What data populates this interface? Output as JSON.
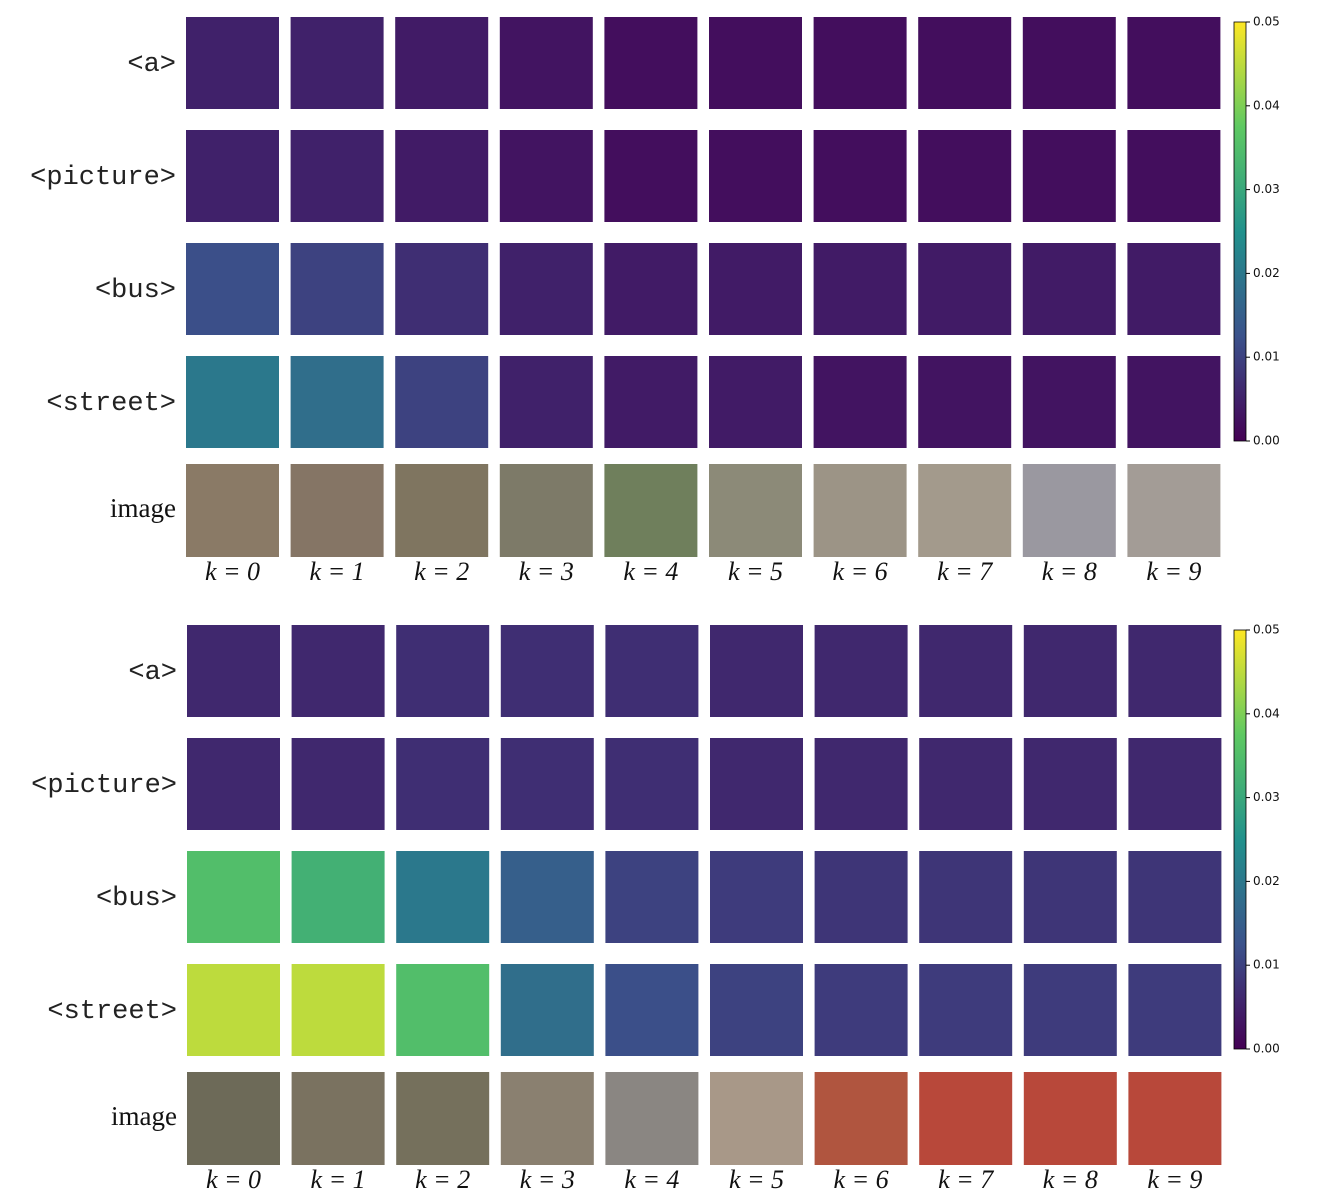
{
  "chart_data": [
    {
      "type": "heatmap",
      "colormap": "viridis",
      "rows": [
        "<a>",
        "<picture>",
        "<bus>",
        "<street>"
      ],
      "image_label": "image",
      "columns": [
        "k = 0",
        "k = 1",
        "k = 2",
        "k = 3",
        "k = 4",
        "k = 5",
        "k = 6",
        "k = 7",
        "k = 8",
        "k = 9"
      ],
      "values": [
        [
          0.005,
          0.005,
          0.004,
          0.003,
          0.002,
          0.002,
          0.002,
          0.002,
          0.002,
          0.002
        ],
        [
          0.005,
          0.005,
          0.004,
          0.003,
          0.002,
          0.002,
          0.002,
          0.002,
          0.002,
          0.002
        ],
        [
          0.012,
          0.01,
          0.007,
          0.005,
          0.004,
          0.004,
          0.004,
          0.004,
          0.004,
          0.004
        ],
        [
          0.02,
          0.018,
          0.01,
          0.005,
          0.004,
          0.004,
          0.003,
          0.003,
          0.003,
          0.003
        ]
      ],
      "clim": [
        0,
        0.05
      ],
      "cticks": [
        {
          "value": 0,
          "label": "0.00"
        },
        0.01,
        0.02,
        0.03,
        0.04,
        0.05
      ]
    },
    {
      "type": "heatmap",
      "colormap": "viridis",
      "rows": [
        "<a>",
        "<picture>",
        "<bus>",
        "<street>"
      ],
      "image_label": "image",
      "columns": [
        "k = 0",
        "k = 1",
        "k = 2",
        "k = 3",
        "k = 4",
        "k = 5",
        "k = 6",
        "k = 7",
        "k = 8",
        "k = 9"
      ],
      "values": [
        [
          0.006,
          0.006,
          0.007,
          0.007,
          0.007,
          0.006,
          0.006,
          0.006,
          0.006,
          0.006
        ],
        [
          0.006,
          0.006,
          0.007,
          0.007,
          0.007,
          0.006,
          0.006,
          0.006,
          0.006,
          0.006
        ],
        [
          0.035,
          0.032,
          0.02,
          0.015,
          0.01,
          0.009,
          0.008,
          0.008,
          0.008,
          0.008
        ],
        [
          0.045,
          0.045,
          0.035,
          0.018,
          0.012,
          0.01,
          0.009,
          0.009,
          0.009,
          0.009
        ]
      ],
      "clim": [
        0,
        0.05
      ],
      "cticks": [
        {
          "value": 0,
          "label": "0.00"
        },
        0.01,
        0.02,
        0.03,
        0.04,
        0.05
      ]
    }
  ]
}
